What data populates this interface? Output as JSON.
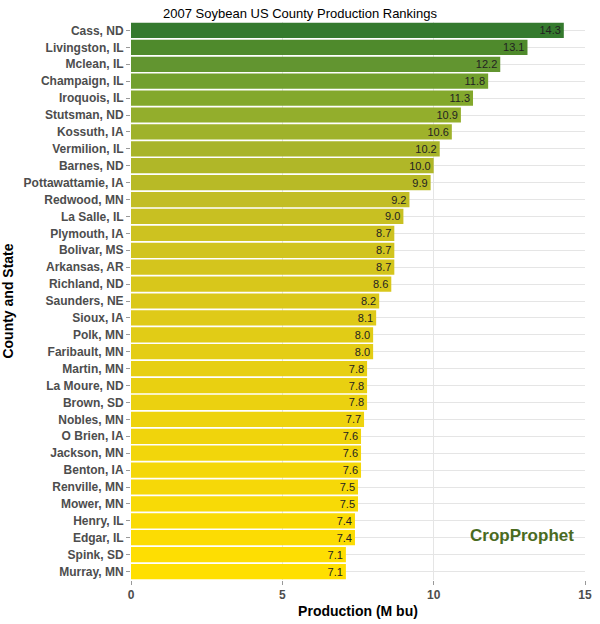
{
  "chart_data": {
    "type": "bar",
    "orientation": "horizontal",
    "title": "2007 Soybean US County Production Rankings",
    "x_label": "Production (M bu)",
    "y_label": "County and State",
    "categories": [
      "Cass, ND",
      "Livingston, IL",
      "Mclean, IL",
      "Champaign, IL",
      "Iroquois, IL",
      "Stutsman, ND",
      "Kossuth, IA",
      "Vermilion, IL",
      "Barnes, ND",
      "Pottawattamie, IA",
      "Redwood, MN",
      "La Salle, IL",
      "Plymouth, IA",
      "Bolivar, MS",
      "Arkansas, AR",
      "Richland, ND",
      "Saunders, NE",
      "Sioux, IA",
      "Polk, MN",
      "Faribault, MN",
      "Martin, MN",
      "La Moure, ND",
      "Brown, SD",
      "Nobles, MN",
      "O Brien, IA",
      "Jackson, MN",
      "Benton, IA",
      "Renville, MN",
      "Mower, MN",
      "Henry, IL",
      "Edgar, IL",
      "Spink, SD",
      "Murray, MN"
    ],
    "values": [
      14.3,
      13.1,
      12.2,
      11.8,
      11.3,
      10.9,
      10.6,
      10.2,
      10.0,
      9.9,
      9.2,
      9.0,
      8.7,
      8.7,
      8.7,
      8.6,
      8.2,
      8.1,
      8.0,
      8.0,
      7.8,
      7.8,
      7.8,
      7.7,
      7.6,
      7.6,
      7.6,
      7.5,
      7.5,
      7.4,
      7.4,
      7.1,
      7.1
    ],
    "value_labels": [
      "14.3",
      "13.1",
      "12.2",
      "11.8",
      "11.3",
      "10.9",
      "10.6",
      "10.2",
      "10.0",
      "9.9",
      "9.2",
      "9.0",
      "8.7",
      "8.7",
      "8.7",
      "8.6",
      "8.2",
      "8.1",
      "8.0",
      "8.0",
      "7.8",
      "7.8",
      "7.8",
      "7.7",
      "7.6",
      "7.6",
      "7.6",
      "7.5",
      "7.5",
      "7.4",
      "7.4",
      "7.1",
      "7.1"
    ],
    "data_labels": true,
    "colors": [
      "#357a2e",
      "#4f8a2c",
      "#629530",
      "#72a02e",
      "#83a82c",
      "#93ae2c",
      "#9fb22b",
      "#a8b42a",
      "#b0b728",
      "#b8ba26",
      "#c2bd24",
      "#c8c022",
      "#cdc220",
      "#d1c41e",
      "#d4c51d",
      "#d8c71b",
      "#dbc81a",
      "#dfca18",
      "#e1cc16",
      "#e4cd15",
      "#e7cf13",
      "#e9d011",
      "#ebd110",
      "#eed30e",
      "#f0d40c",
      "#f2d60b",
      "#f4d709",
      "#f6d808",
      "#f8da06",
      "#fadb05",
      "#fcdc03",
      "#fede02",
      "#ffdf00"
    ],
    "xlim": [
      0,
      15
    ],
    "xticks": [
      0,
      5,
      10,
      15
    ],
    "grid": true,
    "annotations": [
      "CropProphet"
    ]
  }
}
